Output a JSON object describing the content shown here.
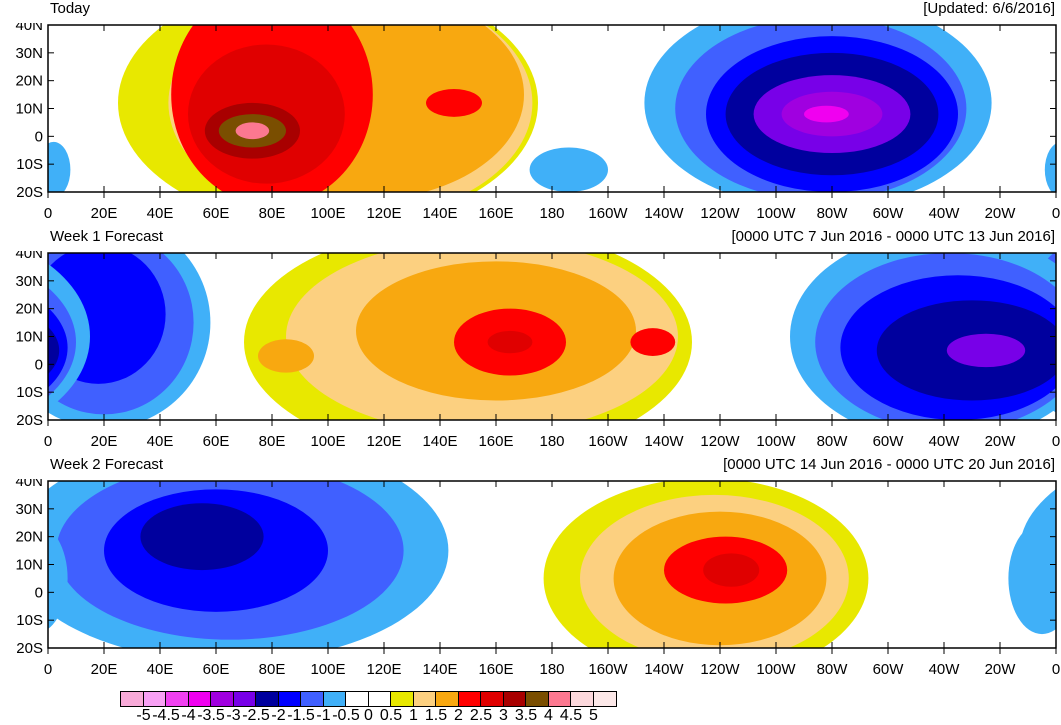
{
  "updated": "[Updated: 6/6/2016]",
  "lon_labels": [
    "0",
    "20E",
    "40E",
    "60E",
    "80E",
    "100E",
    "120E",
    "140E",
    "160E",
    "180",
    "160W",
    "140W",
    "120W",
    "100W",
    "80W",
    "60W",
    "40W",
    "20W",
    "0"
  ],
  "lat_labels": [
    "40N",
    "30N",
    "20N",
    "10N",
    "0",
    "10S",
    "20S"
  ],
  "colorbar": {
    "labels": [
      "-5",
      "-4.5",
      "-4",
      "-3.5",
      "-3",
      "-2.5",
      "-2",
      "-1.5",
      "-1",
      "-0.5",
      "0",
      "0.5",
      "1",
      "1.5",
      "2",
      "2.5",
      "3",
      "3.5",
      "4",
      "4.5",
      "5"
    ],
    "colors": [
      "#f8aad8",
      "#f8a0f4",
      "#f040f0",
      "#f000f0",
      "#a000e0",
      "#7800e8",
      "#00009e",
      "#0000ff",
      "#4060ff",
      "#40b0f8",
      "#ffffff",
      "#ffffff",
      "#e8e800",
      "#fcd080",
      "#f8a810",
      "#ff0000",
      "#e00000",
      "#a80000",
      "#7a4e00",
      "#fc7890",
      "#fcd8dc",
      "#fce8e8"
    ]
  },
  "panels": [
    {
      "title": "Today",
      "right": "[Updated: 6/6/2016]",
      "blobs": [
        {
          "lon": 100,
          "lat": 12,
          "rlon": 75,
          "rlat": 45,
          "c": 12
        },
        {
          "lon": 108,
          "lat": 12,
          "rlon": 65,
          "rlat": 42,
          "c": 13
        },
        {
          "lon": 112,
          "lat": 15,
          "rlon": 58,
          "rlat": 38,
          "c": 14
        },
        {
          "lon": 80,
          "lat": 15,
          "rlon": 36,
          "rlat": 40,
          "c": 15
        },
        {
          "lon": 145,
          "lat": 12,
          "rlon": 10,
          "rlat": 5,
          "c": 15
        },
        {
          "lon": 78,
          "lat": 8,
          "rlon": 28,
          "rlat": 25,
          "c": 16
        },
        {
          "lon": 73,
          "lat": 2,
          "rlon": 17,
          "rlat": 10,
          "c": 17
        },
        {
          "lon": 73,
          "lat": 2,
          "rlon": 12,
          "rlat": 6,
          "c": 18
        },
        {
          "lon": 73,
          "lat": 2,
          "rlon": 6,
          "rlat": 3,
          "c": 19
        },
        {
          "lon": 275,
          "lat": 12,
          "rlon": 62,
          "rlat": 38,
          "c": 9
        },
        {
          "lon": 186,
          "lat": -12,
          "rlon": 14,
          "rlat": 8,
          "c": 9
        },
        {
          "lon": 2,
          "lat": -12,
          "rlon": 6,
          "rlat": 10,
          "c": 9
        },
        {
          "lon": 276,
          "lat": 10,
          "rlon": 52,
          "rlat": 33,
          "c": 8
        },
        {
          "lon": 280,
          "lat": 8,
          "rlon": 45,
          "rlat": 28,
          "c": 7
        },
        {
          "lon": 280,
          "lat": 8,
          "rlon": 38,
          "rlat": 22,
          "c": 6
        },
        {
          "lon": 280,
          "lat": 8,
          "rlon": 28,
          "rlat": 14,
          "c": 5
        },
        {
          "lon": 280,
          "lat": 8,
          "rlon": 18,
          "rlat": 8,
          "c": 4
        },
        {
          "lon": 278,
          "lat": 8,
          "rlon": 8,
          "rlat": 3,
          "c": 3
        }
      ]
    },
    {
      "title": "Week 1 Forecast",
      "right": "[0000 UTC 7 Jun 2016 - 0000 UTC 13 Jun 2016]",
      "blobs": [
        {
          "lon": 20,
          "lat": 15,
          "rlon": 38,
          "rlat": 38,
          "c": 9
        },
        {
          "lon": 20,
          "lat": 15,
          "rlon": 32,
          "rlat": 33,
          "c": 8
        },
        {
          "lon": 18,
          "lat": 18,
          "rlon": 24,
          "rlat": 25,
          "c": 7
        },
        {
          "lon": 150,
          "lat": 8,
          "rlon": 80,
          "rlat": 42,
          "c": 12
        },
        {
          "lon": 155,
          "lat": 10,
          "rlon": 70,
          "rlat": 35,
          "c": 13
        },
        {
          "lon": 160,
          "lat": 12,
          "rlon": 50,
          "rlat": 25,
          "c": 14
        },
        {
          "lon": 85,
          "lat": 3,
          "rlon": 10,
          "rlat": 6,
          "c": 14
        },
        {
          "lon": 165,
          "lat": 8,
          "rlon": 20,
          "rlat": 12,
          "c": 15
        },
        {
          "lon": 216,
          "lat": 8,
          "rlon": 8,
          "rlat": 5,
          "c": 15
        },
        {
          "lon": 165,
          "lat": 8,
          "rlon": 8,
          "rlat": 4,
          "c": 16
        },
        {
          "lon": 320,
          "lat": 10,
          "rlon": 55,
          "rlat": 38,
          "c": 9
        },
        {
          "lon": 322,
          "lat": 8,
          "rlon": 48,
          "rlat": 32,
          "c": 8
        },
        {
          "lon": 325,
          "lat": 6,
          "rlon": 42,
          "rlat": 26,
          "c": 7
        },
        {
          "lon": 330,
          "lat": 5,
          "rlon": 34,
          "rlat": 18,
          "c": 6
        },
        {
          "lon": 335,
          "lat": 5,
          "rlon": 14,
          "rlat": 6,
          "c": 5
        }
      ]
    },
    {
      "title": "Week 2 Forecast",
      "right": "[0000 UTC 14 Jun 2016 - 0000 UTC 20 Jun 2016]",
      "blobs": [
        {
          "lon": 65,
          "lat": 15,
          "rlon": 78,
          "rlat": 40,
          "c": 9
        },
        {
          "lon": 65,
          "lat": 15,
          "rlon": 62,
          "rlat": 32,
          "c": 8
        },
        {
          "lon": 60,
          "lat": 15,
          "rlon": 40,
          "rlat": 22,
          "c": 7
        },
        {
          "lon": 55,
          "lat": 20,
          "rlon": 22,
          "rlat": 12,
          "c": 6
        },
        {
          "lon": 235,
          "lat": 5,
          "rlon": 58,
          "rlat": 36,
          "c": 12
        },
        {
          "lon": 238,
          "lat": 5,
          "rlon": 48,
          "rlat": 30,
          "c": 13
        },
        {
          "lon": 240,
          "lat": 5,
          "rlon": 38,
          "rlat": 24,
          "c": 14
        },
        {
          "lon": 242,
          "lat": 8,
          "rlon": 22,
          "rlat": 12,
          "c": 15
        },
        {
          "lon": 244,
          "lat": 8,
          "rlon": 10,
          "rlat": 6,
          "c": 16
        },
        {
          "lon": 355,
          "lat": 5,
          "rlon": 12,
          "rlat": 20,
          "c": 9
        }
      ]
    }
  ]
}
